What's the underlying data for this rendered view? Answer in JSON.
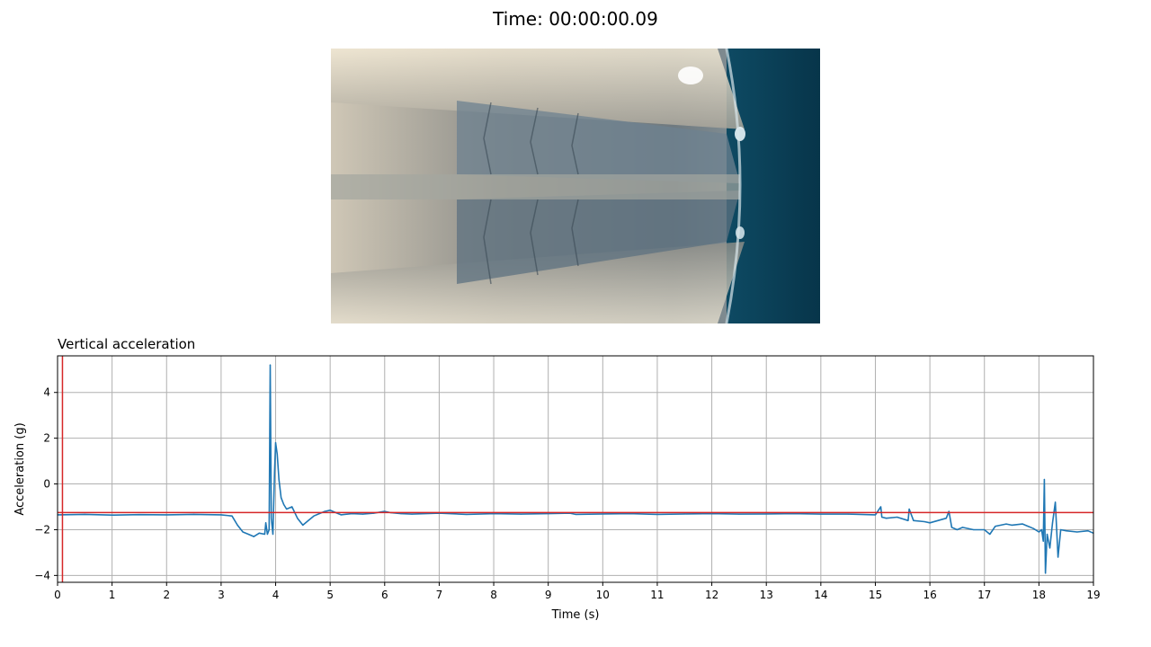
{
  "frame": {
    "title": "Time: 00:00:00.09"
  },
  "video": {
    "description": "camera frame: metallic V-shaped chute / tank interior with water on right"
  },
  "chart_data": {
    "type": "line",
    "title": "Vertical acceleration",
    "xlabel": "Time (s)",
    "ylabel": "Acceleration (g)",
    "xlim": [
      0,
      19
    ],
    "ylim": [
      -4.3,
      5.6
    ],
    "xticks": [
      0,
      1,
      2,
      3,
      4,
      5,
      6,
      7,
      8,
      9,
      10,
      11,
      12,
      13,
      14,
      15,
      16,
      17,
      18,
      19
    ],
    "yticks": [
      -4,
      -2,
      0,
      2,
      4
    ],
    "grid": true,
    "colors": {
      "series": "#1f77b4",
      "marker": "#d62728",
      "grid": "#b0b0b0"
    },
    "cursor": {
      "x": 0.09,
      "y": -1.25
    },
    "series": [
      {
        "name": "",
        "x": [
          0,
          0.5,
          1,
          1.5,
          2,
          2.5,
          3,
          3.2,
          3.3,
          3.4,
          3.5,
          3.6,
          3.7,
          3.8,
          3.82,
          3.85,
          3.88,
          3.9,
          3.92,
          3.95,
          3.98,
          4.0,
          4.03,
          4.06,
          4.1,
          4.15,
          4.2,
          4.3,
          4.4,
          4.5,
          4.6,
          4.7,
          4.8,
          4.9,
          5.0,
          5.1,
          5.2,
          5.4,
          5.6,
          5.8,
          6.0,
          6.1,
          6.3,
          6.5,
          7.0,
          7.5,
          8,
          8.5,
          9,
          9.4,
          9.5,
          10,
          10.5,
          11,
          11.5,
          12,
          12.5,
          13,
          13.5,
          14,
          14.5,
          15,
          15.1,
          15.12,
          15.2,
          15.4,
          15.6,
          15.62,
          15.7,
          15.9,
          16.0,
          16.3,
          16.35,
          16.4,
          16.5,
          16.6,
          16.8,
          17,
          17.1,
          17.2,
          17.4,
          17.5,
          17.7,
          17.9,
          18.0,
          18.05,
          18.08,
          18.1,
          18.12,
          18.15,
          18.2,
          18.25,
          18.3,
          18.35,
          18.4,
          18.5,
          18.7,
          18.9,
          19
        ],
        "y": [
          -1.35,
          -1.33,
          -1.36,
          -1.34,
          -1.35,
          -1.33,
          -1.35,
          -1.4,
          -1.8,
          -2.1,
          -2.2,
          -2.3,
          -2.15,
          -2.2,
          -1.7,
          -2.2,
          -2.0,
          5.2,
          -1.5,
          -2.2,
          0.5,
          1.8,
          1.3,
          0.2,
          -0.6,
          -0.9,
          -1.1,
          -1.0,
          -1.5,
          -1.8,
          -1.6,
          -1.4,
          -1.3,
          -1.2,
          -1.15,
          -1.25,
          -1.35,
          -1.3,
          -1.32,
          -1.28,
          -1.2,
          -1.25,
          -1.3,
          -1.32,
          -1.28,
          -1.33,
          -1.3,
          -1.32,
          -1.3,
          -1.28,
          -1.33,
          -1.31,
          -1.3,
          -1.33,
          -1.31,
          -1.3,
          -1.32,
          -1.31,
          -1.3,
          -1.32,
          -1.32,
          -1.35,
          -1.0,
          -1.45,
          -1.5,
          -1.45,
          -1.6,
          -1.1,
          -1.6,
          -1.65,
          -1.7,
          -1.5,
          -1.2,
          -1.9,
          -2.0,
          -1.9,
          -2.0,
          -2.0,
          -2.2,
          -1.85,
          -1.75,
          -1.8,
          -1.75,
          -1.95,
          -2.1,
          -2.0,
          -2.5,
          0.2,
          -3.9,
          -2.2,
          -2.8,
          -1.7,
          -0.8,
          -3.2,
          -2.0,
          -2.05,
          -2.1,
          -2.05,
          -2.15
        ]
      }
    ]
  }
}
